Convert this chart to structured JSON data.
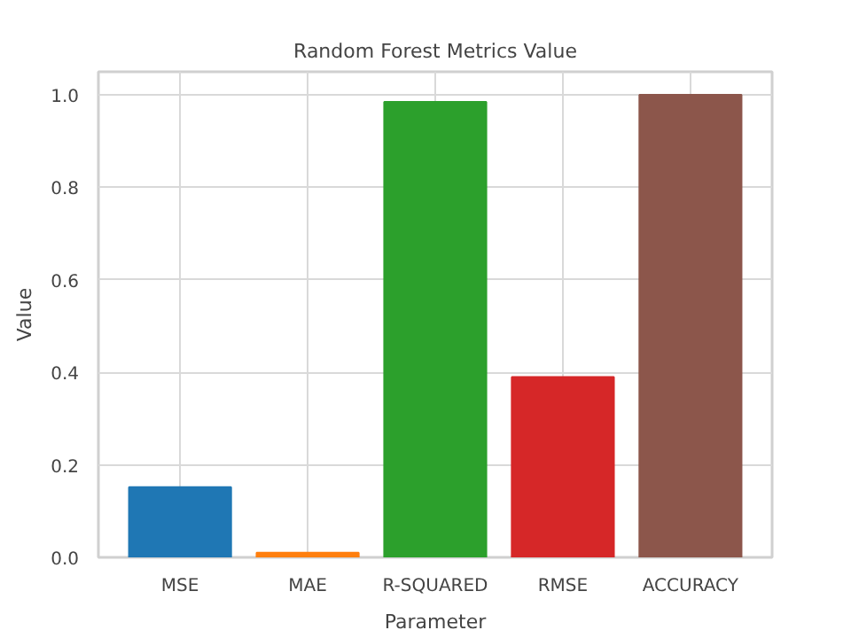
{
  "chart_data": {
    "type": "bar",
    "title": "Random Forest Metrics Value",
    "xlabel": "Parameter",
    "ylabel": "Value",
    "categories": [
      "MSE",
      "MAE",
      "R-SQUARED",
      "RMSE",
      "ACCURACY"
    ],
    "values": [
      0.152,
      0.01,
      0.985,
      0.39,
      1.0
    ],
    "colors": [
      "#1f77b4",
      "#ff7f0e",
      "#2ca02c",
      "#d62728",
      "#8c564b"
    ],
    "ylim": [
      0,
      1.05
    ],
    "yticks": [
      {
        "value": 0,
        "label": "0.0"
      },
      {
        "value": 0.2,
        "label": "0.2"
      },
      {
        "value": 0.4,
        "label": "0.4"
      },
      {
        "value": 0.6,
        "label": "0.6"
      },
      {
        "value": 0.8,
        "label": "0.8"
      },
      {
        "value": 1.0,
        "label": "1.0"
      }
    ],
    "grid": true
  }
}
